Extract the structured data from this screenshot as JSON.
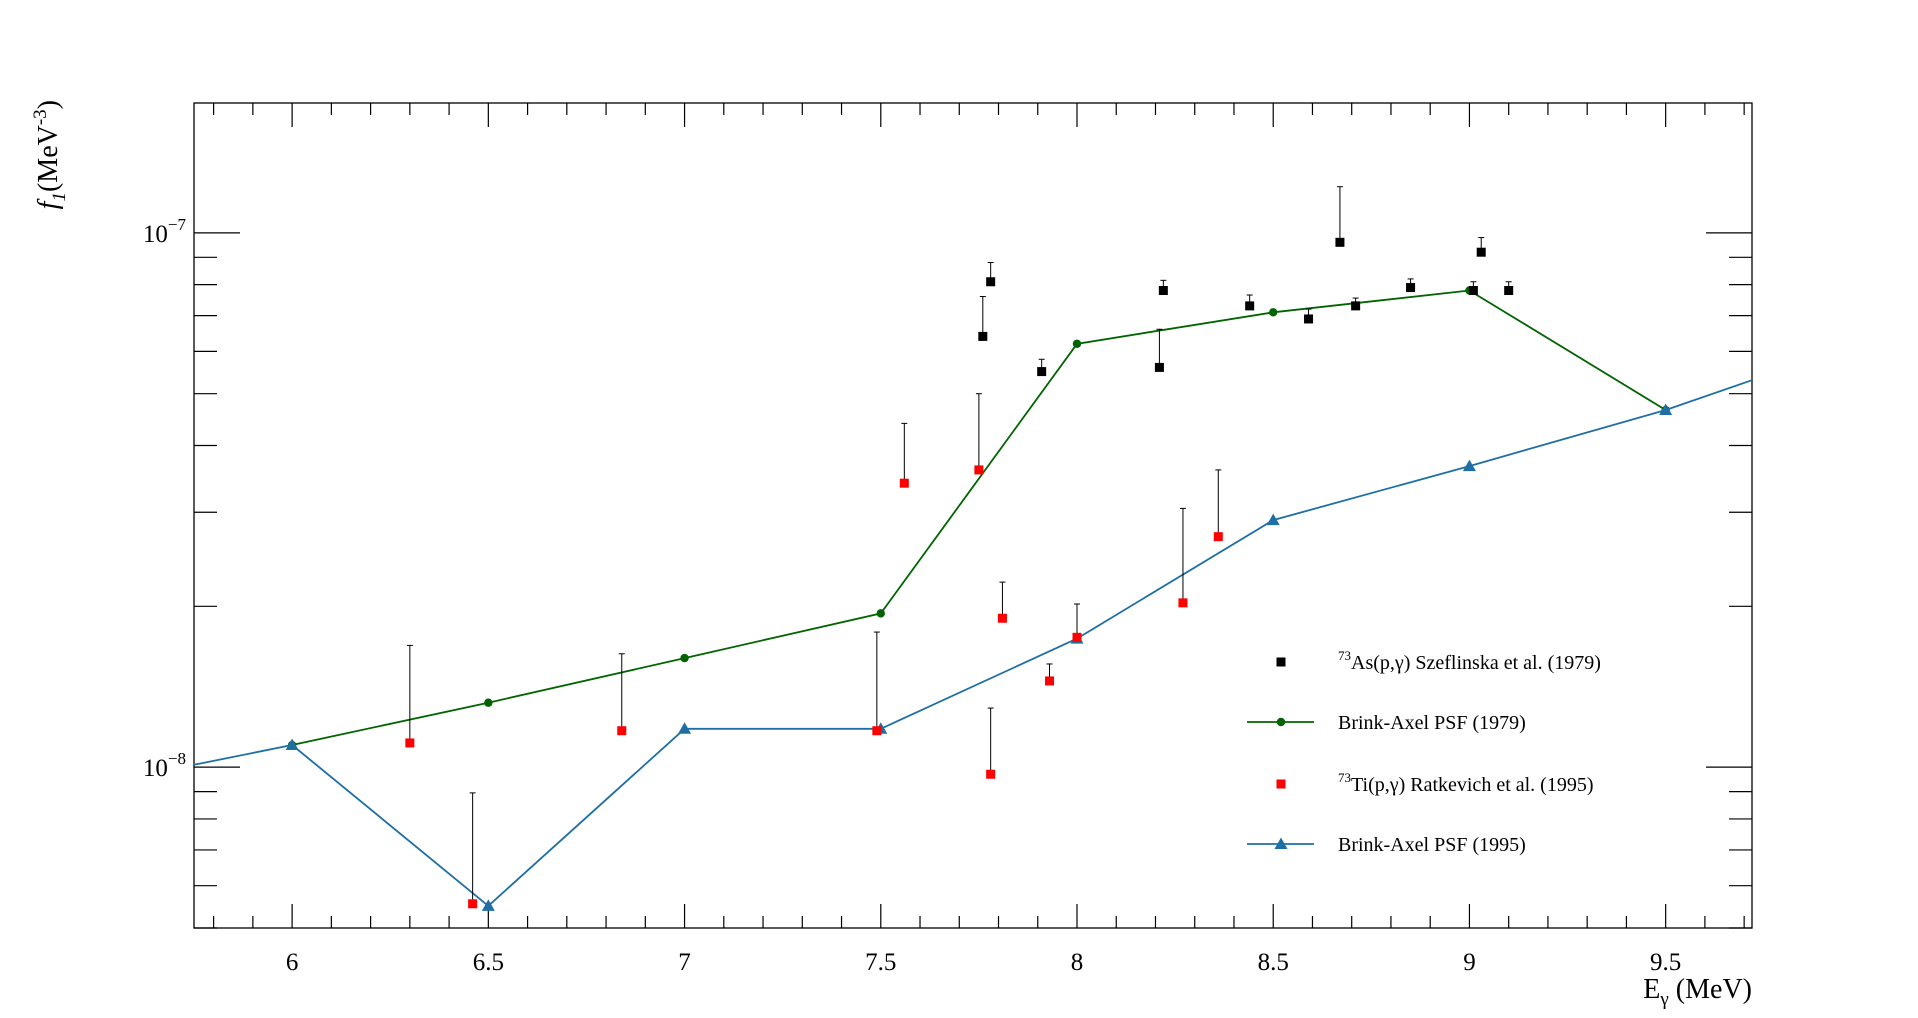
{
  "chart_data": {
    "type": "scatter",
    "title": "",
    "xlabel": {
      "main": "E",
      "sub": "γ",
      "rest": " (MeV)"
    },
    "ylabel": {
      "main": "f",
      "sub": "1",
      "rest": "(MeV",
      "sup": "-3",
      "close": ")"
    },
    "xlim": [
      5.75,
      9.72
    ],
    "ylim": [
      5e-09,
      1.75e-07
    ],
    "yscale": "log",
    "x_ticks": [
      {
        "value": 6,
        "label": "6"
      },
      {
        "value": 6.5,
        "label": "6.5"
      },
      {
        "value": 7,
        "label": "7"
      },
      {
        "value": 7.5,
        "label": "7.5"
      },
      {
        "value": 8,
        "label": "8"
      },
      {
        "value": 8.5,
        "label": "8.5"
      },
      {
        "value": 9,
        "label": "9"
      },
      {
        "value": 9.5,
        "label": "9.5"
      }
    ],
    "y_ticks": [
      {
        "value": 1e-08,
        "base": "10",
        "exp": "−8"
      },
      {
        "value": 1e-07,
        "base": "10",
        "exp": "−7"
      }
    ],
    "legend_position": "bottom-right",
    "series": [
      {
        "name": {
          "sup": "73",
          "text": "As(p,γ) Szeflinska et al. (1979)"
        },
        "kind": "points",
        "marker": "square",
        "color": "#000000",
        "points": [
          {
            "x": 7.76,
            "y": 6.4e-08,
            "yerr": 1.2e-08
          },
          {
            "x": 7.78,
            "y": 8.1e-08,
            "yerr": 7e-09
          },
          {
            "x": 7.91,
            "y": 5.5e-08,
            "yerr": 3e-09
          },
          {
            "x": 8.21,
            "y": 5.6e-08,
            "yerr": 1e-08
          },
          {
            "x": 8.22,
            "y": 7.8e-08,
            "yerr": 3.5e-09
          },
          {
            "x": 8.44,
            "y": 7.3e-08,
            "yerr": 3.5e-09
          },
          {
            "x": 8.59,
            "y": 6.9e-08,
            "yerr": 3e-09
          },
          {
            "x": 8.67,
            "y": 9.6e-08,
            "yerr": 2.6e-08
          },
          {
            "x": 8.71,
            "y": 7.3e-08,
            "yerr": 2.5e-09
          },
          {
            "x": 8.85,
            "y": 7.9e-08,
            "yerr": 3e-09
          },
          {
            "x": 9.01,
            "y": 7.8e-08,
            "yerr": 3e-09
          },
          {
            "x": 9.03,
            "y": 9.2e-08,
            "yerr": 6e-09
          },
          {
            "x": 9.1,
            "y": 7.8e-08,
            "yerr": 3e-09
          }
        ]
      },
      {
        "name": {
          "sup": "",
          "text": "Brink-Axel PSF (1979)"
        },
        "kind": "line",
        "marker": "circle",
        "color": "#006400",
        "x": [
          6.0,
          6.5,
          7.0,
          7.5,
          8.0,
          8.5,
          9.0,
          9.5
        ],
        "y": [
          1.1e-08,
          1.32e-08,
          1.6e-08,
          1.94e-08,
          6.2e-08,
          7.1e-08,
          7.8e-08,
          4.66e-08
        ]
      },
      {
        "name": {
          "sup": "73",
          "text": "Ti(p,γ) Ratkevich et al. (1995)"
        },
        "kind": "points",
        "marker": "square",
        "color": "#ff0000",
        "points": [
          {
            "x": 6.3,
            "y": 1.11e-08,
            "yerr": 5.8e-09
          },
          {
            "x": 6.46,
            "y": 5.55e-09,
            "yerr": 3.4e-09
          },
          {
            "x": 6.84,
            "y": 1.17e-08,
            "yerr": 4.6e-09
          },
          {
            "x": 7.49,
            "y": 1.17e-08,
            "yerr": 6.2e-09
          },
          {
            "x": 7.56,
            "y": 3.4e-08,
            "yerr": 1e-08
          },
          {
            "x": 7.75,
            "y": 3.6e-08,
            "yerr": 1.4e-08
          },
          {
            "x": 7.78,
            "y": 9.7e-09,
            "yerr": 3.2e-09
          },
          {
            "x": 7.81,
            "y": 1.9e-08,
            "yerr": 3.2e-09
          },
          {
            "x": 7.93,
            "y": 1.45e-08,
            "yerr": 1.1e-09
          },
          {
            "x": 8.0,
            "y": 1.75e-08,
            "yerr": 2.7e-09
          },
          {
            "x": 8.27,
            "y": 2.03e-08,
            "yerr": 1.02e-08
          },
          {
            "x": 8.36,
            "y": 2.7e-08,
            "yerr": 9e-09
          }
        ]
      },
      {
        "name": {
          "sup": "",
          "text": "Brink-Axel PSF (1995)"
        },
        "kind": "line",
        "marker": "triangle",
        "color": "#1f6fa5",
        "x": [
          5.75,
          6.0,
          6.5,
          7.0,
          7.5,
          8.0,
          8.5,
          9.0,
          9.5,
          9.72
        ],
        "y": [
          1.01e-08,
          1.1e-08,
          5.5e-09,
          1.18e-08,
          1.18e-08,
          1.74e-08,
          2.9e-08,
          3.66e-08,
          4.66e-08,
          5.3e-08
        ],
        "markers_at": [
          6.0,
          6.5,
          7.0,
          7.5,
          8.0,
          8.5,
          9.0,
          9.5
        ]
      }
    ]
  }
}
